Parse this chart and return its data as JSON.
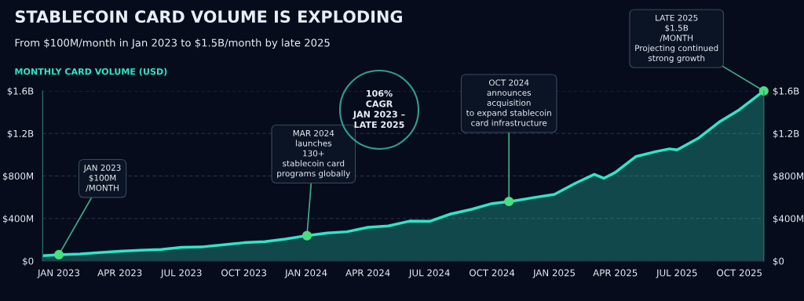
{
  "chart_data": {
    "type": "area",
    "title": "STABLECOIN CARD VOLUME IS EXPLODING",
    "subtitle": "From $100M/month in Jan 2023 to $1.5B/month by late 2025",
    "ylabel": "MONTHLY CARD VOLUME (USD)",
    "x": [
      "2022-12-08",
      "2023-01",
      "2023-02",
      "2023-03",
      "2023-04",
      "2023-05",
      "2023-06",
      "2023-07",
      "2023-08",
      "2023-09",
      "2023-10",
      "2023-11",
      "2023-12",
      "2024-01",
      "2024-02",
      "2024-03",
      "2024-04",
      "2024-05",
      "2024-06",
      "2024-07",
      "2024-08",
      "2024-09",
      "2024-10",
      "2024-11",
      "2024-12",
      "2025-01",
      "2025-02",
      "2025-03",
      "2025-03-15",
      "2025-04",
      "2025-05",
      "2025-06",
      "2025-06-20",
      "2025-07",
      "2025-08",
      "2025-09",
      "2025-10",
      "2025-11-06"
    ],
    "series": [
      {
        "color": "#2ee6c8",
        "values": [
          49000000,
          59000000,
          66000000,
          79000000,
          91000000,
          101000000,
          108000000,
          128000000,
          133000000,
          152000000,
          172000000,
          182000000,
          206000000,
          238000000,
          263000000,
          275000000,
          317000000,
          329000000,
          375000000,
          373000000,
          442000000,
          486000000,
          540000000,
          564000000,
          596000000,
          626000000,
          731000000,
          815000000,
          778000000,
          834000000,
          982000000,
          1031000000,
          1055000000,
          1045000000,
          1153000000,
          1306000000,
          1423000000,
          1600000000
        ]
      }
    ],
    "xlim": [
      "2022-12-08",
      "2025-11-06"
    ],
    "xticks": [
      {
        "value": "2023-01",
        "label": "JAN 2023"
      },
      {
        "value": "2023-04",
        "label": "APR 2023"
      },
      {
        "value": "2023-07",
        "label": "JUL 2023"
      },
      {
        "value": "2023-10",
        "label": "OCT 2023"
      },
      {
        "value": "2024-01",
        "label": "JAN 2024"
      },
      {
        "value": "2024-04",
        "label": "APR 2024"
      },
      {
        "value": "2024-07",
        "label": "JUL 2024"
      },
      {
        "value": "2024-10",
        "label": "OCT 2024"
      },
      {
        "value": "2025-01",
        "label": "JAN 2025"
      },
      {
        "value": "2025-04",
        "label": "APR 2025"
      },
      {
        "value": "2025-07",
        "label": "JUL 2025"
      },
      {
        "value": "2025-10",
        "label": "OCT 2025"
      }
    ],
    "ylim": [
      0,
      1600000000
    ],
    "yticks": [
      {
        "value": 0,
        "label": "$0"
      },
      {
        "value": 400000000,
        "label": "$400M"
      },
      {
        "value": 800000000,
        "label": "$800M"
      },
      {
        "value": 1200000000,
        "label": "$1.2B"
      },
      {
        "value": 1600000000,
        "label": "$1.6B"
      }
    ],
    "y2lim": [
      0,
      1600000000
    ],
    "y2ticks": [
      {
        "value": 0,
        "label": "$0"
      },
      {
        "value": 400000000,
        "label": "$400M"
      },
      {
        "value": 800000000,
        "label": "$800M"
      },
      {
        "value": 1200000000,
        "label": "$1.2B"
      },
      {
        "value": 1600000000,
        "label": "$1.6B"
      }
    ],
    "grid": "y",
    "annotations": [
      {
        "text": "JAN 2023\n$100M\n/MONTH",
        "x": "2023-01",
        "y": 59000000
      },
      {
        "text": "MAR 2024\nlaunches\n130+\nstablecoin card\nprograms globally",
        "x": "2024-01-02",
        "y": 238000000
      },
      {
        "text": "OCT 2024\nannounces\nacquisition\nto expand stablecoin\ncard infrastructure",
        "x": "2024-10-26",
        "y": 560000000
      },
      {
        "text": "LATE 2025\n$1.5B\n/MONTH\nProjecting continued\nstrong growth",
        "x": "2025-11-06",
        "y": 1600000000
      },
      "106%\nCAGR\nJAN 2023 –\nLATE 2025"
    ]
  }
}
